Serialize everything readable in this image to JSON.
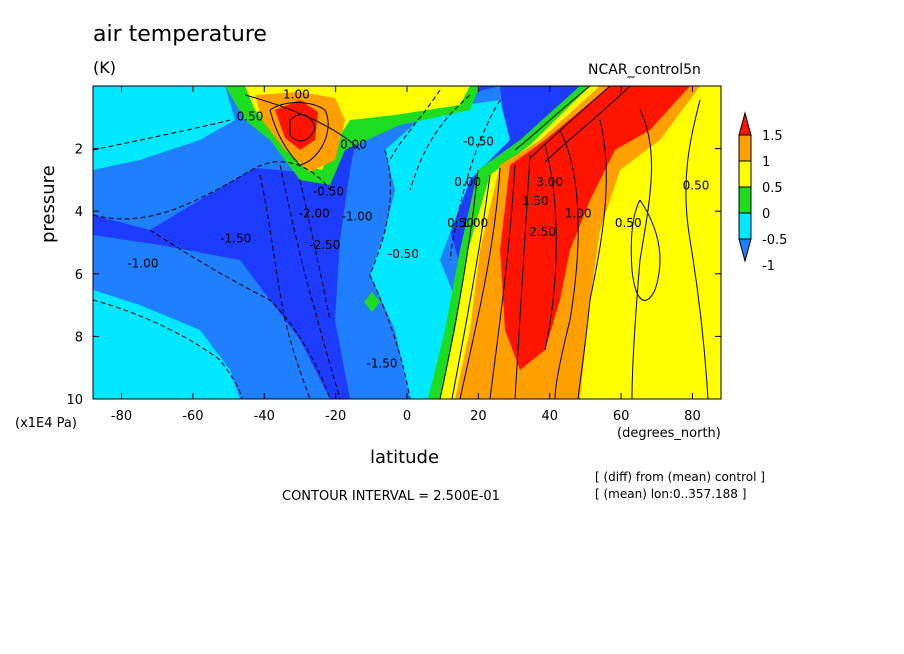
{
  "header": {
    "title": "air temperature",
    "units": "(K)",
    "dataset": "NCAR_control5n"
  },
  "axes": {
    "ylabel": "pressure",
    "yunit": "(x1E4 Pa)",
    "xlabel": "latitude",
    "xunit": "(degrees_north)"
  },
  "footer": {
    "contour_interval": "CONTOUR INTERVAL = 2.500E-01",
    "note_diff": "[ (diff) from (mean) control ]",
    "note_mean": "[ (mean) lon:0..357.188 ]"
  },
  "chart_data": {
    "type": "heatmap",
    "title": "air temperature",
    "units": "K",
    "xlabel": "latitude",
    "ylabel": "pressure",
    "xlim": [
      -88,
      88
    ],
    "ylim": [
      10,
      0
    ],
    "x_ticks": [
      -80,
      -60,
      -40,
      -20,
      0,
      20,
      40,
      60,
      80
    ],
    "x_tick_labels": [
      "-80",
      "-60",
      "-40",
      "-20",
      "0",
      "20",
      "40",
      "60",
      "80"
    ],
    "y_ticks": [
      2,
      4,
      6,
      8,
      10
    ],
    "y_tick_labels": [
      "2",
      "4",
      "6",
      "8",
      "10"
    ],
    "levels": [
      -1,
      -0.5,
      0,
      0.5,
      1,
      1.5
    ],
    "level_labels": [
      "-1",
      "-0.5",
      "0",
      "0.5",
      "1",
      "1.5"
    ],
    "level_colors": [
      "#1f7fff",
      "#00e8ff",
      "#1edc1e",
      "#ffff00",
      "#ffa000",
      "#ff1400"
    ],
    "below_color": "#1e3cff",
    "contour_labels": [
      {
        "x": -31,
        "y": 0.4,
        "text": "1.00"
      },
      {
        "x": -44,
        "y": 1.1,
        "text": "0.50"
      },
      {
        "x": -15,
        "y": 2.0,
        "text": "0.00"
      },
      {
        "x": 20,
        "y": 1.9,
        "text": "-0.50"
      },
      {
        "x": -22,
        "y": 3.5,
        "text": "-0.50"
      },
      {
        "x": -14,
        "y": 4.3,
        "text": "-1.00"
      },
      {
        "x": -26,
        "y": 4.2,
        "text": "-2.00"
      },
      {
        "x": -23,
        "y": 5.2,
        "text": "-2.50"
      },
      {
        "x": -48,
        "y": 5.0,
        "text": "-1.50"
      },
      {
        "x": -74,
        "y": 5.8,
        "text": "-1.00"
      },
      {
        "x": -1,
        "y": 5.5,
        "text": "-0.50"
      },
      {
        "x": -7,
        "y": 9.0,
        "text": "-1.50"
      },
      {
        "x": 17,
        "y": 3.2,
        "text": "0.00"
      },
      {
        "x": 15,
        "y": 4.5,
        "text": "0.50"
      },
      {
        "x": 19,
        "y": 4.5,
        "text": "1.00"
      },
      {
        "x": 36,
        "y": 3.8,
        "text": "1.50"
      },
      {
        "x": 40,
        "y": 3.2,
        "text": "3.00"
      },
      {
        "x": 38,
        "y": 4.8,
        "text": "2.50"
      },
      {
        "x": 48,
        "y": 4.2,
        "text": "1.00"
      },
      {
        "x": 62,
        "y": 4.5,
        "text": "0.50"
      },
      {
        "x": 81,
        "y": 3.3,
        "text": "0.50"
      }
    ]
  }
}
